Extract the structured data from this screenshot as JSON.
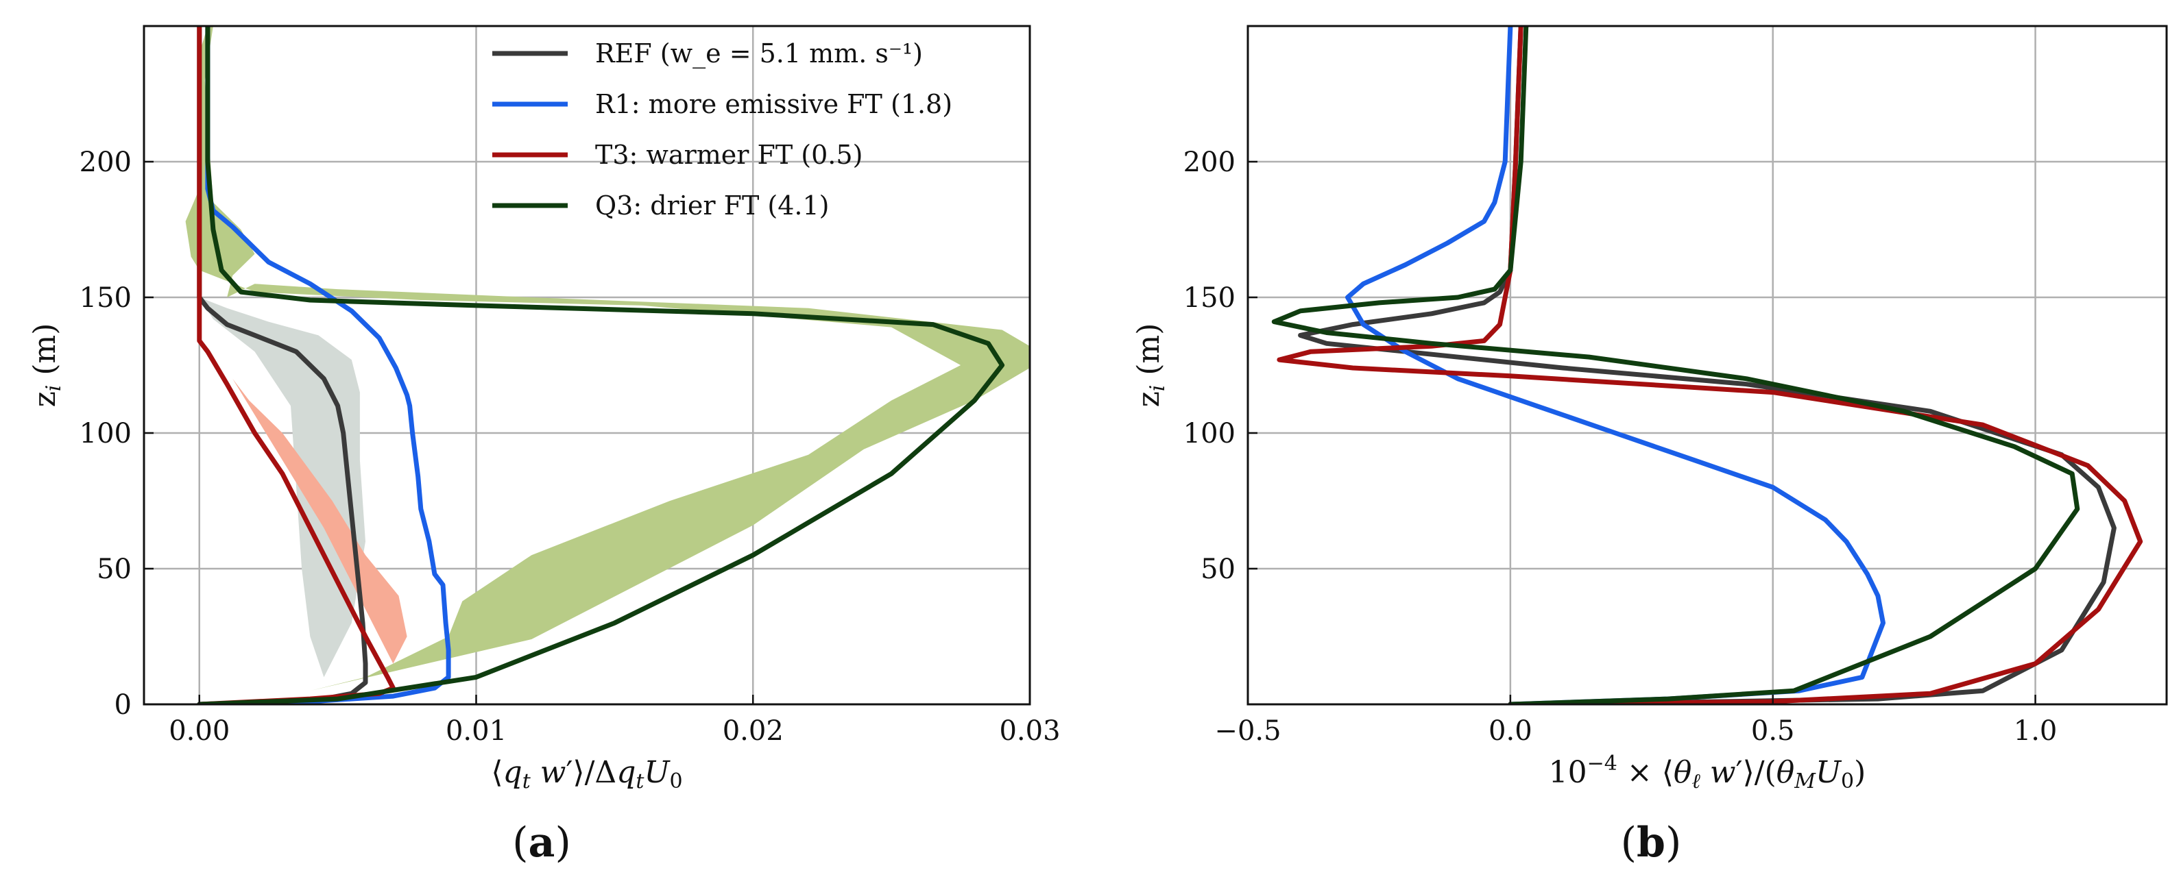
{
  "figure": {
    "panels": [
      {
        "id": "a",
        "label": "(a)",
        "label_bold": "a",
        "xlabel": "⟨q_t w′⟩/Δq_t U_0",
        "ylabel": "z_i (m)",
        "xlim": [
          -0.002,
          0.03
        ],
        "ylim": [
          0,
          250
        ],
        "xticks": [
          0.0,
          0.01,
          0.02,
          0.03
        ],
        "xtick_labels": [
          "0.00",
          "0.01",
          "0.02",
          "0.03"
        ],
        "yticks": [
          0,
          50,
          100,
          150,
          200
        ],
        "ytick_labels": [
          "0",
          "50",
          "100",
          "150",
          "200"
        ],
        "grid": true
      },
      {
        "id": "b",
        "label": "(b)",
        "label_bold": "b",
        "xlabel": "10⁻⁴ × ⟨θ_ℓ w′⟩/(θ_M U_0)",
        "ylabel": "z_i (m)",
        "xlim": [
          -0.5,
          1.25
        ],
        "ylim": [
          0,
          250
        ],
        "xticks": [
          -0.5,
          0.0,
          0.5,
          1.0
        ],
        "xtick_labels": [
          "−0.5",
          "0.0",
          "0.5",
          "1.0"
        ],
        "yticks": [
          50,
          100,
          150,
          200
        ],
        "ytick_labels": [
          "50",
          "100",
          "150",
          "200"
        ],
        "grid": true
      }
    ],
    "legend": {
      "placement": "top-right of panel (a)",
      "entries": [
        {
          "key": "ref",
          "label": "REF",
          "value": "(w_e = 5.1 mm. s⁻¹)",
          "color": "#3a3a3a"
        },
        {
          "key": "r1",
          "label": "R1: more emissive FT",
          "value": "(1.8)",
          "color": "#1a5fe8"
        },
        {
          "key": "t3",
          "label": "T3: warmer FT",
          "value": "(0.5)",
          "color": "#a50f0f"
        },
        {
          "key": "q3",
          "label": "Q3: drier FT",
          "value": "(4.1)",
          "color": "#0f3d0f"
        }
      ]
    }
  },
  "chart_data": [
    {
      "type": "line",
      "title": "(a)",
      "xlabel": "⟨q_t w′⟩/Δq_t U_0",
      "ylabel": "z_i (m)",
      "xlim": [
        -0.002,
        0.03
      ],
      "ylim": [
        0,
        250
      ],
      "series": [
        {
          "name": "REF (w_e = 5.1 mm. s⁻¹)",
          "color": "#3a3a3a",
          "points": [
            [
              0.0,
              0
            ],
            [
              0.003,
              1
            ],
            [
              0.0045,
              2
            ],
            [
              0.0055,
              4
            ],
            [
              0.006,
              8
            ],
            [
              0.006,
              15
            ],
            [
              0.0059,
              30
            ],
            [
              0.0057,
              50
            ],
            [
              0.0055,
              70
            ],
            [
              0.0053,
              90
            ],
            [
              0.0052,
              100
            ],
            [
              0.005,
              110
            ],
            [
              0.0045,
              120
            ],
            [
              0.0035,
              130
            ],
            [
              0.002,
              136
            ],
            [
              0.001,
              140
            ],
            [
              0.0003,
              146
            ],
            [
              0.0,
              150
            ],
            [
              0.0,
              170
            ],
            [
              0.0,
              250
            ]
          ]
        },
        {
          "name": "R1: more emissive FT (1.8)",
          "color": "#1a5fe8",
          "points": [
            [
              0.0,
              0
            ],
            [
              0.004,
              1
            ],
            [
              0.007,
              3
            ],
            [
              0.0085,
              6
            ],
            [
              0.009,
              10
            ],
            [
              0.009,
              20
            ],
            [
              0.0089,
              30
            ],
            [
              0.0088,
              44
            ],
            [
              0.0085,
              48
            ],
            [
              0.0083,
              60
            ],
            [
              0.008,
              72
            ],
            [
              0.0079,
              84
            ],
            [
              0.0077,
              100
            ],
            [
              0.0076,
              110
            ],
            [
              0.0075,
              114
            ],
            [
              0.0071,
              124
            ],
            [
              0.0065,
              135
            ],
            [
              0.0055,
              145
            ],
            [
              0.004,
              155
            ],
            [
              0.0025,
              163
            ],
            [
              0.0018,
              170
            ],
            [
              0.0012,
              176
            ],
            [
              0.0005,
              182
            ],
            [
              0.0003,
              190
            ],
            [
              0.0003,
              250
            ]
          ]
        },
        {
          "name": "T3: warmer FT (0.5)",
          "color": "#a50f0f",
          "points": [
            [
              0.0,
              0
            ],
            [
              0.004,
              2
            ],
            [
              0.0065,
              4
            ],
            [
              0.007,
              6
            ],
            [
              0.0068,
              10
            ],
            [
              0.006,
              25
            ],
            [
              0.005,
              45
            ],
            [
              0.004,
              65
            ],
            [
              0.003,
              85
            ],
            [
              0.002,
              100
            ],
            [
              0.001,
              118
            ],
            [
              0.0003,
              130
            ],
            [
              0.0,
              134
            ],
            [
              0.0,
              250
            ]
          ]
        },
        {
          "name": "Q3: drier FT (4.1)",
          "color": "#0f3d0f",
          "points": [
            [
              0.0,
              0
            ],
            [
              0.005,
              2
            ],
            [
              0.01,
              10
            ],
            [
              0.015,
              30
            ],
            [
              0.02,
              55
            ],
            [
              0.025,
              85
            ],
            [
              0.028,
              112
            ],
            [
              0.029,
              125
            ],
            [
              0.0285,
              133
            ],
            [
              0.0265,
              140
            ],
            [
              0.02,
              144
            ],
            [
              0.01,
              147
            ],
            [
              0.004,
              149
            ],
            [
              0.0015,
              152
            ],
            [
              0.0008,
              160
            ],
            [
              0.0005,
              175
            ],
            [
              0.0003,
              200
            ],
            [
              0.0003,
              250
            ]
          ]
        }
      ],
      "bands": [
        {
          "name": "REF spread",
          "color": "#d3dad6",
          "upper": [
            [
              0.0045,
              10
            ],
            [
              0.0055,
              30
            ],
            [
              0.006,
              60
            ],
            [
              0.0058,
              90
            ],
            [
              0.0058,
              115
            ],
            [
              0.0055,
              127
            ],
            [
              0.0043,
              136
            ],
            [
              0.0025,
              141
            ],
            [
              0.001,
              146
            ],
            [
              0.0,
              150
            ]
          ],
          "lower": [
            [
              0.0,
              150
            ],
            [
              0.0005,
              142
            ],
            [
              0.002,
              130
            ],
            [
              0.0033,
              110
            ],
            [
              0.0035,
              80
            ],
            [
              0.0037,
              50
            ],
            [
              0.004,
              25
            ],
            [
              0.0045,
              10
            ]
          ]
        },
        {
          "name": "T3 spread",
          "color": "#f7ab95",
          "upper": [
            [
              0.007,
              15
            ],
            [
              0.0075,
              25
            ],
            [
              0.0072,
              40
            ],
            [
              0.006,
              55
            ],
            [
              0.0048,
              75
            ],
            [
              0.003,
              100
            ],
            [
              0.0018,
              112
            ],
            [
              0.0012,
              120
            ]
          ],
          "lower": [
            [
              0.0012,
              120
            ],
            [
              0.003,
              90
            ],
            [
              0.0045,
              65
            ],
            [
              0.0055,
              45
            ],
            [
              0.0065,
              25
            ],
            [
              0.007,
              15
            ]
          ]
        },
        {
          "name": "Q3 spread",
          "color": "#b8cc87",
          "upper": [
            [
              0.004,
              5
            ],
            [
              0.012,
              24
            ],
            [
              0.02,
              66
            ],
            [
              0.024,
              94
            ],
            [
              0.028,
              112
            ],
            [
              0.03,
              124
            ],
            [
              0.03,
              132
            ],
            [
              0.029,
              138
            ],
            [
              0.022,
              146
            ],
            [
              0.012,
              150
            ],
            [
              0.005,
              153
            ],
            [
              0.002,
              155
            ],
            [
              0.001,
              150
            ],
            [
              0.0012,
              158
            ],
            [
              0.002,
              166
            ],
            [
              0.0015,
              175
            ],
            [
              0.0005,
              185
            ],
            [
              0.0002,
              230
            ],
            [
              0.0005,
              250
            ]
          ],
          "lower": [
            [
              0.0003,
              250
            ],
            [
              0.0,
              240
            ],
            [
              0.0,
              190
            ],
            [
              -0.0005,
              178
            ],
            [
              -0.0003,
              165
            ],
            [
              0.0,
              160
            ],
            [
              0.002,
              152
            ],
            [
              0.008,
              149
            ],
            [
              0.016,
              147
            ],
            [
              0.025,
              139
            ],
            [
              0.0275,
              125
            ],
            [
              0.025,
              112
            ],
            [
              0.022,
              92
            ],
            [
              0.017,
              75
            ],
            [
              0.012,
              55
            ],
            [
              0.0095,
              38
            ],
            [
              0.009,
              25
            ],
            [
              0.006,
              10
            ],
            [
              0.004,
              5
            ]
          ]
        }
      ]
    },
    {
      "type": "line",
      "title": "(b)",
      "xlabel": "10⁻⁴ × ⟨θ_ℓ w′⟩/(θ_M U_0)",
      "ylabel": "z_i (m)",
      "xlim": [
        -0.5,
        1.25
      ],
      "ylim": [
        0,
        250
      ],
      "series": [
        {
          "name": "REF",
          "color": "#3a3a3a",
          "points": [
            [
              0.0,
              0
            ],
            [
              0.4,
              1
            ],
            [
              0.7,
              2
            ],
            [
              0.9,
              5
            ],
            [
              1.05,
              20
            ],
            [
              1.13,
              45
            ],
            [
              1.15,
              65
            ],
            [
              1.12,
              80
            ],
            [
              1.05,
              92
            ],
            [
              0.8,
              108
            ],
            [
              0.45,
              118
            ],
            [
              0.1,
              124
            ],
            [
              -0.2,
              130
            ],
            [
              -0.35,
              133
            ],
            [
              -0.4,
              136
            ],
            [
              -0.3,
              140
            ],
            [
              -0.15,
              144
            ],
            [
              -0.05,
              148
            ],
            [
              -0.02,
              152
            ],
            [
              0.0,
              160
            ],
            [
              0.01,
              200
            ],
            [
              0.02,
              250
            ]
          ]
        },
        {
          "name": "R1",
          "color": "#1a5fe8",
          "points": [
            [
              0.0,
              0
            ],
            [
              0.3,
              2
            ],
            [
              0.55,
              5
            ],
            [
              0.67,
              10
            ],
            [
              0.69,
              20
            ],
            [
              0.71,
              30
            ],
            [
              0.7,
              40
            ],
            [
              0.68,
              48
            ],
            [
              0.64,
              60
            ],
            [
              0.6,
              68
            ],
            [
              0.5,
              80
            ],
            [
              0.35,
              90
            ],
            [
              0.2,
              100
            ],
            [
              0.05,
              110
            ],
            [
              -0.1,
              120
            ],
            [
              -0.2,
              130
            ],
            [
              -0.28,
              140
            ],
            [
              -0.31,
              150
            ],
            [
              -0.28,
              155
            ],
            [
              -0.2,
              162
            ],
            [
              -0.12,
              170
            ],
            [
              -0.05,
              178
            ],
            [
              -0.03,
              185
            ],
            [
              -0.01,
              200
            ],
            [
              0.0,
              250
            ]
          ]
        },
        {
          "name": "T3",
          "color": "#a50f0f",
          "points": [
            [
              0.0,
              0
            ],
            [
              0.5,
              1
            ],
            [
              0.8,
              4
            ],
            [
              1.0,
              15
            ],
            [
              1.12,
              35
            ],
            [
              1.2,
              60
            ],
            [
              1.17,
              75
            ],
            [
              1.1,
              88
            ],
            [
              0.9,
              103
            ],
            [
              0.5,
              115
            ],
            [
              0.0,
              121
            ],
            [
              -0.3,
              124
            ],
            [
              -0.44,
              127
            ],
            [
              -0.38,
              130
            ],
            [
              -0.15,
              132
            ],
            [
              -0.05,
              134
            ],
            [
              -0.02,
              140
            ],
            [
              0.0,
              160
            ],
            [
              0.01,
              200
            ],
            [
              0.02,
              250
            ]
          ]
        },
        {
          "name": "Q3",
          "color": "#0f3d0f",
          "points": [
            [
              0.0,
              0
            ],
            [
              0.3,
              2
            ],
            [
              0.54,
              5
            ],
            [
              0.8,
              25
            ],
            [
              1.0,
              50
            ],
            [
              1.08,
              72
            ],
            [
              1.07,
              85
            ],
            [
              0.96,
              95
            ],
            [
              0.75,
              108
            ],
            [
              0.45,
              120
            ],
            [
              0.15,
              128
            ],
            [
              -0.15,
              133
            ],
            [
              -0.35,
              137
            ],
            [
              -0.45,
              141
            ],
            [
              -0.4,
              145
            ],
            [
              -0.25,
              148
            ],
            [
              -0.1,
              150
            ],
            [
              -0.03,
              153
            ],
            [
              0.0,
              160
            ],
            [
              0.02,
              200
            ],
            [
              0.03,
              250
            ]
          ]
        }
      ]
    }
  ]
}
